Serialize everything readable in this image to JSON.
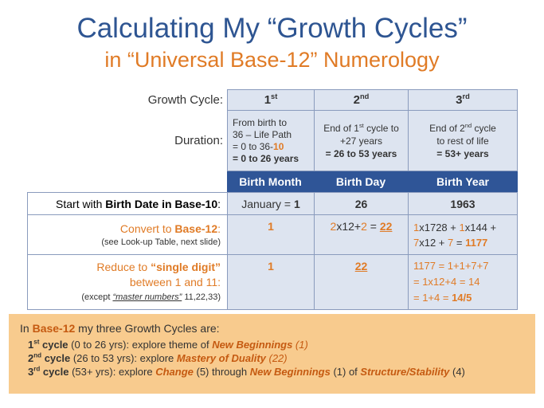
{
  "title": {
    "line1": "Calculating My “Growth Cycles”",
    "line2": "in “Universal Base-12” Numerology"
  },
  "table": {
    "growth_cycle_label": "Growth Cycle:",
    "cycles": [
      {
        "num": "1",
        "sup": "st"
      },
      {
        "num": "2",
        "sup": "nd"
      },
      {
        "num": "3",
        "sup": "rd"
      }
    ],
    "duration_label": "Duration:",
    "durations": {
      "c1": {
        "l1": "From birth to",
        "l2": "36 – Life Path",
        "l3a": "= 0 to 36-",
        "l3b": "10",
        "l4": "= 0 to 26 years"
      },
      "c2": {
        "l1a": "End of 1",
        "l1sup": "st",
        "l1b": " cycle to",
        "l2": "+27 years",
        "l3": "= 26 to 53 years"
      },
      "c3": {
        "l1a": "End of 2",
        "l1sup": "nd",
        "l1b": " cycle",
        "l2": "to rest of life",
        "l3": "= 53+ years"
      }
    },
    "headers": [
      "Birth Month",
      "Birth Day",
      "Birth Year"
    ],
    "start_row": {
      "label_a": "Start with ",
      "label_b": "Birth Date in Base-10",
      "label_c": ":",
      "month_a": "January = ",
      "month_b": "1",
      "day": "26",
      "year": "1963"
    },
    "convert_row": {
      "label_a": "Convert to ",
      "label_b": "Base-12",
      "label_c": ":",
      "sub": "(see Look-up Table, next slide)",
      "month": "1",
      "day": {
        "a": "2",
        "b": "x12+",
        "c": "2",
        "d": " = ",
        "e": "22"
      },
      "year": {
        "a": "1",
        "b": "x1728 + ",
        "c": "1",
        "d": "x144 +",
        "e": "7",
        "f": "x12 + ",
        "g": "7",
        "h": " = ",
        "i": "1177"
      }
    },
    "reduce_row": {
      "l1a": "Reduce to ",
      "l1b": "“single digit”",
      "l2": "between 1 and 11:",
      "l3a": "(except ",
      "l3b": "“master numbers”",
      "l3c": " 11,22,33)",
      "month": "1",
      "day": "22",
      "year": {
        "l1": "1177 = 1+1+7+7",
        "l2": "= 1x12+4 = 14",
        "l3a": "= 1+4 = ",
        "l3b": "14/5"
      }
    }
  },
  "summary": {
    "intro_a": "In ",
    "intro_b": "Base-12",
    "intro_c": " my three Growth Cycles are:",
    "c1": {
      "a": "1",
      "sup": "st",
      "b": " cycle",
      "c": " (0 to 26 yrs): explore theme of ",
      "d": "New Beginnings",
      "e": " (1)"
    },
    "c2": {
      "a": "2",
      "sup": "nd",
      "b": " cycle",
      "c": " (26 to 53 yrs): explore ",
      "d": "Mastery of Duality",
      "e": " (22)"
    },
    "c3": {
      "a": "3",
      "sup": "rd",
      "b": " cycle",
      "c": " (53+ yrs): explore ",
      "d": "Change",
      "e": " (5) through ",
      "f": "New Beginnings",
      "g": " (1) of ",
      "h": "Structure/Stability",
      "i": " (4)"
    }
  },
  "colors": {
    "title_blue": "#2e5592",
    "accent_orange": "#e07b26",
    "header_blue": "#2f5597",
    "cell_blue": "#dde4f0",
    "summary_bg": "#f8cb8e"
  }
}
